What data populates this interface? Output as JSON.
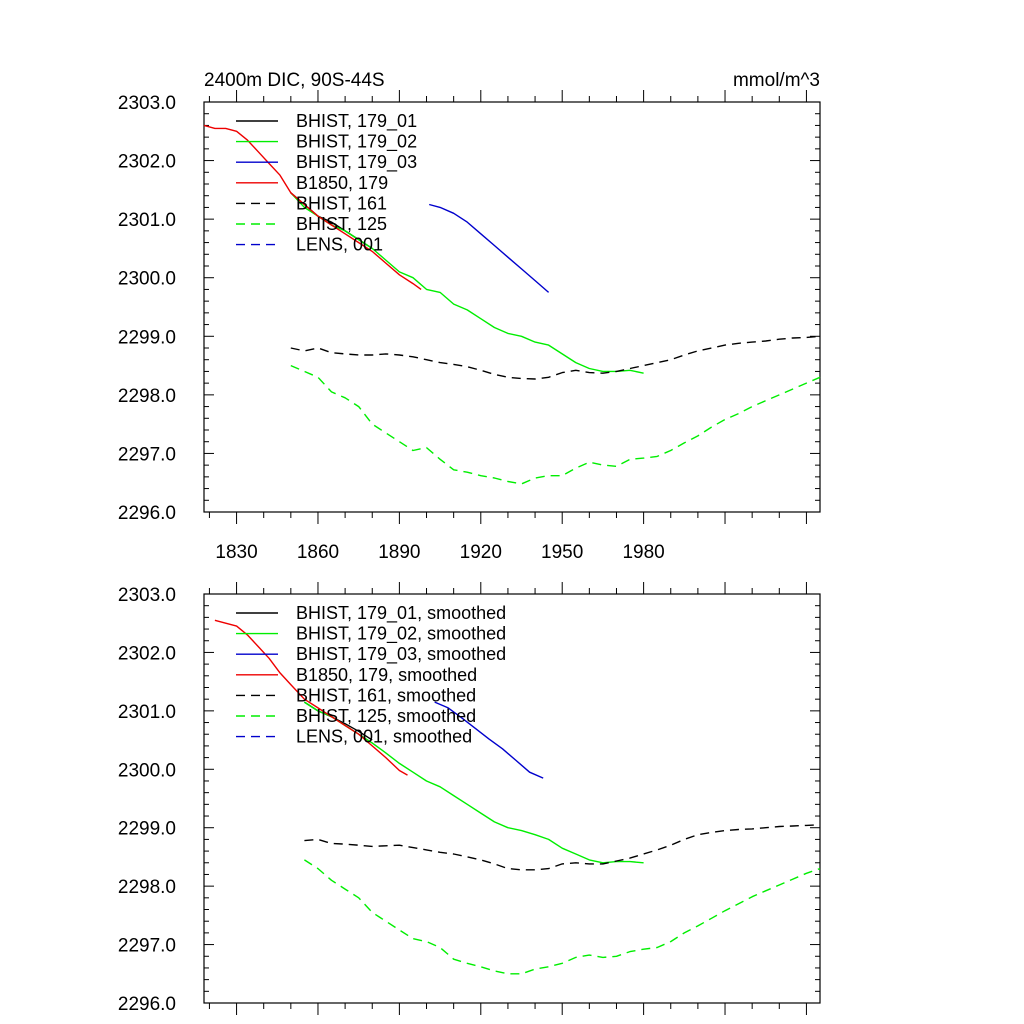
{
  "figure": {
    "title_left": "2400m DIC, 90S-44S",
    "title_right": "mmol/m^3"
  },
  "chart_data": [
    {
      "type": "line",
      "title": "2400m DIC, 90S-44S",
      "units": "mmol/m^3",
      "xlim": [
        1818,
        2045
      ],
      "ylim": [
        2296.0,
        2303.0
      ],
      "xticks": [
        1830,
        1860,
        1890,
        1920,
        1950,
        1980
      ],
      "xtick_labels": [
        "1830",
        "1860",
        "1890",
        "1920",
        "1950",
        "1980"
      ],
      "yticks": [
        2296,
        2297,
        2298,
        2299,
        2300,
        2301,
        2302,
        2303
      ],
      "ytick_labels": [
        "2296.0",
        "2297.0",
        "2298.0",
        "2299.0",
        "2300.0",
        "2301.0",
        "2302.0",
        "2303.0"
      ],
      "grid": false,
      "legend_position": "top-left",
      "series": [
        {
          "name": "BHIST, 179_01",
          "color": "#000000",
          "dash": "solid",
          "x": [
            1850,
            1855,
            1860,
            1865,
            1870,
            1875,
            1880
          ],
          "y": [
            2301.45,
            2301.25,
            2301.05,
            2300.95,
            2300.8,
            2300.65,
            2300.5
          ]
        },
        {
          "name": "BHIST, 179_02",
          "color": "#00ee00",
          "dash": "solid",
          "x": [
            1850,
            1855,
            1860,
            1865,
            1870,
            1875,
            1880,
            1885,
            1890,
            1895,
            1900,
            1905,
            1910,
            1915,
            1920,
            1925,
            1930,
            1935,
            1940,
            1945,
            1950,
            1955,
            1960,
            1965,
            1970,
            1975,
            1980
          ],
          "y": [
            2301.45,
            2301.2,
            2301.05,
            2300.9,
            2300.8,
            2300.65,
            2300.5,
            2300.3,
            2300.1,
            2300.0,
            2299.8,
            2299.75,
            2299.55,
            2299.45,
            2299.3,
            2299.15,
            2299.05,
            2299.0,
            2298.9,
            2298.85,
            2298.7,
            2298.55,
            2298.45,
            2298.4,
            2298.4,
            2298.42,
            2298.37
          ]
        },
        {
          "name": "BHIST, 179_03",
          "color": "#0000cc",
          "dash": "solid",
          "x": [
            1901,
            1905,
            1910,
            1915,
            1920,
            1925,
            1930,
            1935,
            1940,
            1945
          ],
          "y": [
            2301.25,
            2301.2,
            2301.1,
            2300.95,
            2300.75,
            2300.55,
            2300.35,
            2300.15,
            2299.95,
            2299.75
          ]
        },
        {
          "name": "B1850, 179",
          "color": "#ee0000",
          "dash": "solid",
          "x": [
            1818,
            1822,
            1826,
            1830,
            1834,
            1838,
            1842,
            1846,
            1850,
            1855,
            1860,
            1865,
            1870,
            1875,
            1880,
            1885,
            1890,
            1895,
            1898
          ],
          "y": [
            2302.6,
            2302.55,
            2302.55,
            2302.5,
            2302.35,
            2302.15,
            2301.95,
            2301.75,
            2301.45,
            2301.25,
            2301.05,
            2300.9,
            2300.75,
            2300.6,
            2300.45,
            2300.25,
            2300.05,
            2299.9,
            2299.8
          ]
        },
        {
          "name": "BHIST, 161",
          "color": "#000000",
          "dash": "dashed",
          "x": [
            1850,
            1855,
            1860,
            1865,
            1870,
            1875,
            1880,
            1885,
            1890,
            1895,
            1900,
            1905,
            1910,
            1915,
            1920,
            1925,
            1930,
            1935,
            1940,
            1945,
            1950,
            1955,
            1960,
            1965,
            1970,
            1975,
            1980,
            1985,
            1990,
            1995,
            2000,
            2005,
            2010,
            2015,
            2020,
            2025,
            2030,
            2035,
            2040,
            2045
          ],
          "y": [
            2298.8,
            2298.75,
            2298.8,
            2298.72,
            2298.7,
            2298.68,
            2298.68,
            2298.7,
            2298.68,
            2298.65,
            2298.6,
            2298.55,
            2298.52,
            2298.48,
            2298.42,
            2298.35,
            2298.3,
            2298.28,
            2298.27,
            2298.3,
            2298.38,
            2298.42,
            2298.38,
            2298.37,
            2298.4,
            2298.45,
            2298.5,
            2298.55,
            2298.6,
            2298.68,
            2298.75,
            2298.8,
            2298.85,
            2298.88,
            2298.9,
            2298.92,
            2298.95,
            2298.97,
            2298.98,
            2299.0
          ]
        },
        {
          "name": "BHIST, 125",
          "color": "#00ee00",
          "dash": "dashed",
          "x": [
            1850,
            1855,
            1860,
            1865,
            1870,
            1875,
            1880,
            1885,
            1890,
            1895,
            1900,
            1905,
            1910,
            1915,
            1920,
            1925,
            1930,
            1935,
            1940,
            1945,
            1950,
            1955,
            1960,
            1965,
            1970,
            1975,
            1980,
            1985,
            1990,
            1995,
            2000,
            2005,
            2010,
            2015,
            2020,
            2025,
            2030,
            2035,
            2040,
            2045
          ],
          "y": [
            2298.5,
            2298.4,
            2298.3,
            2298.05,
            2297.95,
            2297.8,
            2297.5,
            2297.35,
            2297.2,
            2297.05,
            2297.1,
            2296.9,
            2296.72,
            2296.68,
            2296.62,
            2296.58,
            2296.52,
            2296.48,
            2296.58,
            2296.62,
            2296.62,
            2296.75,
            2296.85,
            2296.8,
            2296.78,
            2296.9,
            2296.92,
            2296.95,
            2297.05,
            2297.18,
            2297.3,
            2297.45,
            2297.58,
            2297.68,
            2297.8,
            2297.9,
            2298.0,
            2298.1,
            2298.2,
            2298.3
          ]
        },
        {
          "name": "LENS, 001",
          "color": "#0000cc",
          "dash": "dashed",
          "x": [],
          "y": []
        }
      ]
    },
    {
      "type": "line",
      "title": "",
      "xlim": [
        1818,
        2045
      ],
      "ylim": [
        2296.0,
        2303.0
      ],
      "yticks": [
        2296,
        2297,
        2298,
        2299,
        2300,
        2301,
        2302,
        2303
      ],
      "ytick_labels": [
        "2296.0",
        "2297.0",
        "2298.0",
        "2299.0",
        "2300.0",
        "2301.0",
        "2302.0",
        "2303.0"
      ],
      "grid": false,
      "legend_position": "top-left",
      "series": [
        {
          "name": "BHIST, 179_01, smoothed",
          "color": "#000000",
          "dash": "solid",
          "x": [
            1855,
            1860,
            1865,
            1870,
            1875,
            1880
          ],
          "y": [
            2301.15,
            2301.0,
            2300.9,
            2300.78,
            2300.65,
            2300.5
          ]
        },
        {
          "name": "BHIST, 179_02, smoothed",
          "color": "#00ee00",
          "dash": "solid",
          "x": [
            1855,
            1860,
            1865,
            1870,
            1875,
            1880,
            1885,
            1890,
            1895,
            1900,
            1905,
            1910,
            1915,
            1920,
            1925,
            1930,
            1935,
            1940,
            1945,
            1950,
            1955,
            1960,
            1965,
            1970,
            1975,
            1980
          ],
          "y": [
            2301.15,
            2301.0,
            2300.9,
            2300.75,
            2300.6,
            2300.45,
            2300.28,
            2300.1,
            2299.95,
            2299.8,
            2299.7,
            2299.55,
            2299.4,
            2299.25,
            2299.1,
            2299.0,
            2298.95,
            2298.88,
            2298.8,
            2298.65,
            2298.55,
            2298.45,
            2298.4,
            2298.42,
            2298.42,
            2298.4
          ]
        },
        {
          "name": "BHIST, 179_03, smoothed",
          "color": "#0000cc",
          "dash": "solid",
          "x": [
            1903,
            1908,
            1913,
            1918,
            1923,
            1928,
            1933,
            1938,
            1943
          ],
          "y": [
            2301.15,
            2301.05,
            2300.88,
            2300.7,
            2300.52,
            2300.35,
            2300.15,
            2299.95,
            2299.85
          ]
        },
        {
          "name": "B1850, 179, smoothed",
          "color": "#ee0000",
          "dash": "solid",
          "x": [
            1822,
            1826,
            1830,
            1834,
            1838,
            1842,
            1846,
            1850,
            1855,
            1860,
            1865,
            1870,
            1875,
            1880,
            1885,
            1890,
            1893
          ],
          "y": [
            2302.55,
            2302.5,
            2302.45,
            2302.3,
            2302.1,
            2301.9,
            2301.65,
            2301.45,
            2301.2,
            2301.05,
            2300.9,
            2300.75,
            2300.6,
            2300.4,
            2300.2,
            2299.98,
            2299.9
          ]
        },
        {
          "name": "BHIST, 161, smoothed",
          "color": "#000000",
          "dash": "dashed",
          "x": [
            1855,
            1860,
            1865,
            1870,
            1875,
            1880,
            1885,
            1890,
            1895,
            1900,
            1905,
            1910,
            1915,
            1920,
            1925,
            1930,
            1935,
            1940,
            1945,
            1950,
            1955,
            1960,
            1965,
            1970,
            1975,
            1980,
            1985,
            1990,
            1995,
            2000,
            2005,
            2010,
            2015,
            2020,
            2025,
            2030,
            2035,
            2040,
            2045
          ],
          "y": [
            2298.78,
            2298.8,
            2298.73,
            2298.72,
            2298.7,
            2298.68,
            2298.69,
            2298.7,
            2298.66,
            2298.62,
            2298.58,
            2298.55,
            2298.5,
            2298.45,
            2298.38,
            2298.3,
            2298.28,
            2298.28,
            2298.3,
            2298.38,
            2298.4,
            2298.38,
            2298.38,
            2298.43,
            2298.48,
            2298.55,
            2298.62,
            2298.7,
            2298.8,
            2298.88,
            2298.92,
            2298.95,
            2298.97,
            2298.98,
            2299.0,
            2299.02,
            2299.03,
            2299.04,
            2299.05
          ]
        },
        {
          "name": "BHIST, 125, smoothed",
          "color": "#00ee00",
          "dash": "dashed",
          "x": [
            1855,
            1860,
            1865,
            1870,
            1875,
            1880,
            1885,
            1890,
            1895,
            1900,
            1905,
            1910,
            1915,
            1920,
            1925,
            1930,
            1935,
            1940,
            1945,
            1950,
            1955,
            1960,
            1965,
            1970,
            1975,
            1980,
            1985,
            1990,
            1995,
            2000,
            2005,
            2010,
            2015,
            2020,
            2025,
            2030,
            2035,
            2040,
            2045
          ],
          "y": [
            2298.45,
            2298.3,
            2298.1,
            2297.95,
            2297.8,
            2297.55,
            2297.4,
            2297.25,
            2297.1,
            2297.05,
            2296.95,
            2296.75,
            2296.68,
            2296.62,
            2296.55,
            2296.5,
            2296.5,
            2296.58,
            2296.62,
            2296.68,
            2296.78,
            2296.82,
            2296.78,
            2296.8,
            2296.88,
            2296.92,
            2296.95,
            2297.05,
            2297.2,
            2297.32,
            2297.45,
            2297.58,
            2297.7,
            2297.82,
            2297.92,
            2298.02,
            2298.12,
            2298.22,
            2298.3
          ]
        },
        {
          "name": "LENS, 001, smoothed",
          "color": "#0000cc",
          "dash": "dashed",
          "x": [],
          "y": []
        }
      ]
    }
  ]
}
